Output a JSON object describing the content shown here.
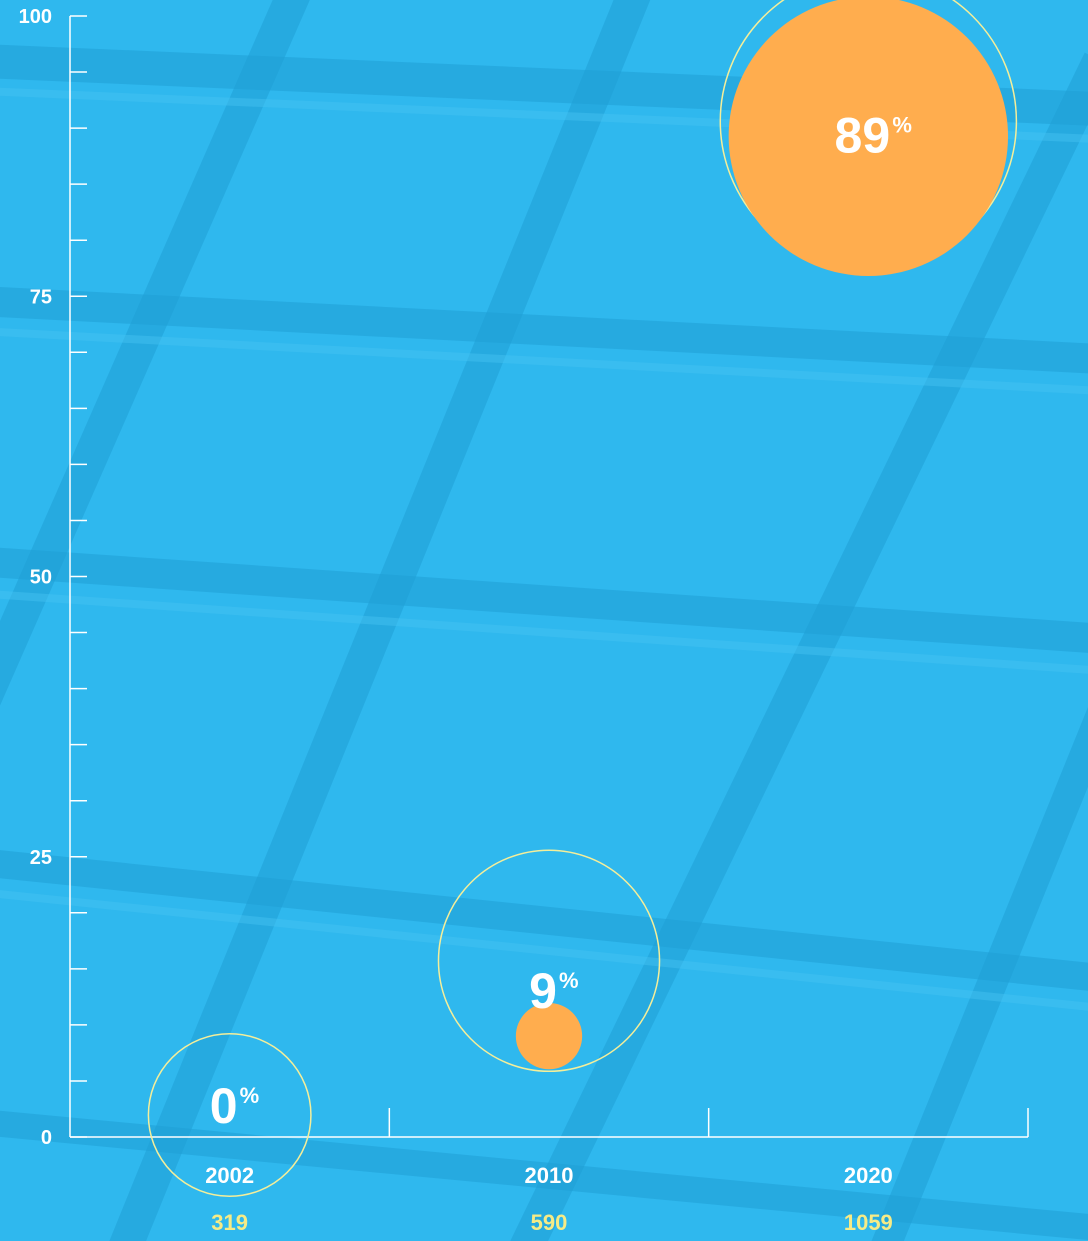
{
  "colors": {
    "background": "#2fb8ee",
    "axis": "#ffffff",
    "bubble_fill": "#ffad4e",
    "ring_stroke": "#f4ee9a",
    "count_text": "#f6eb86",
    "label_text": "#ffffff"
  },
  "chart_data": {
    "type": "scatter",
    "title": "",
    "xlabel": "",
    "ylabel": "",
    "ylim": [
      0,
      100
    ],
    "y_ticks_labeled": [
      0,
      25,
      50,
      75,
      100
    ],
    "y_minor_step": 5,
    "grid": false,
    "categories": [
      "2002",
      "2010",
      "2020"
    ],
    "counts": [
      "319",
      "590",
      "1059"
    ],
    "values": [
      0,
      9,
      89
    ],
    "value_labels": [
      "0",
      "9",
      "89"
    ],
    "percent_sign": "%"
  }
}
